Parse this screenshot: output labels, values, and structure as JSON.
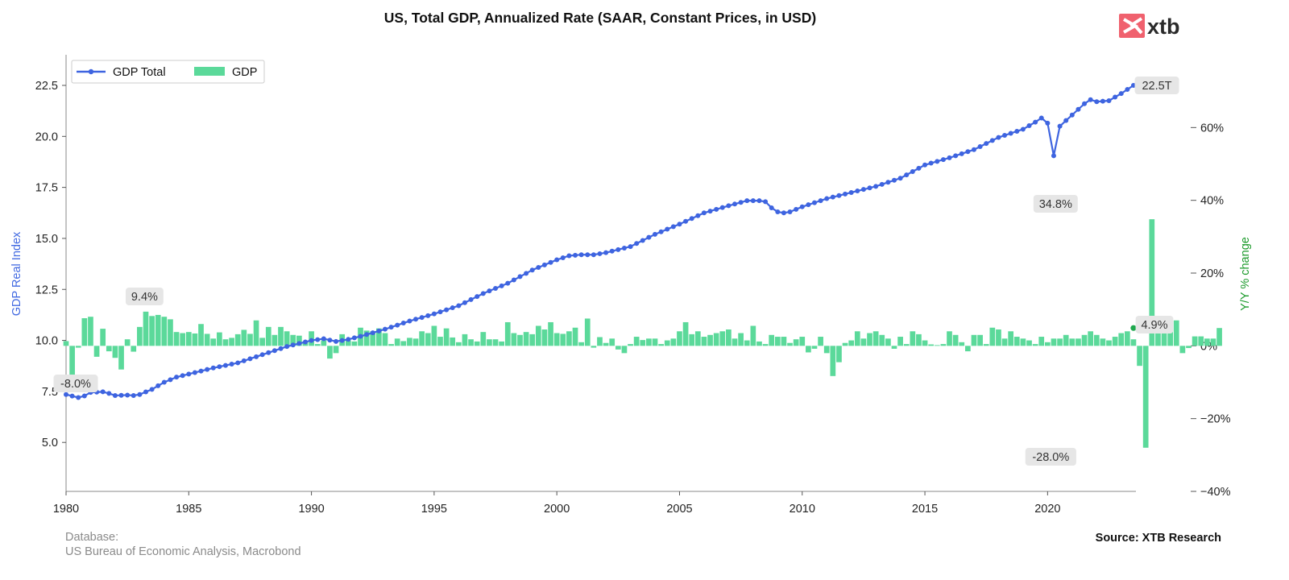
{
  "title": "US, Total GDP, Annualized Rate (SAAR, Constant Prices, in USD)",
  "logo_text": "xtb",
  "footer": {
    "database_label": "Database:",
    "database_value": "US Bureau of Economic Analysis, Macrobond",
    "source": "Source: XTB Research"
  },
  "colors": {
    "line": "#3e64e0",
    "bar": "#5bd99a",
    "left_axis_label": "#4169e1",
    "right_axis_label": "#1a9a2a",
    "logo_bg": "#f0616e",
    "annotation_bg": "#e6e6e6"
  },
  "chart_data": {
    "type": "bar+line",
    "title": "US, Total GDP, Annualized Rate (SAAR, Constant Prices, in USD)",
    "xlim": [
      1980,
      2023.6
    ],
    "x_ticks": [
      1980,
      1985,
      1990,
      1995,
      2000,
      2005,
      2010,
      2015,
      2020
    ],
    "left_axis": {
      "label": "GDP Real Index",
      "ylim": [
        2.6,
        24.0
      ],
      "ticks": [
        5.0,
        7.5,
        10.0,
        12.5,
        15.0,
        17.5,
        20.0,
        22.5
      ]
    },
    "right_axis": {
      "label": "Y/Y % change",
      "ylim": [
        -40,
        80
      ],
      "ticks": [
        -40,
        -20,
        0,
        20,
        40,
        60
      ]
    },
    "grid": false,
    "legend": {
      "position": "top-left",
      "entries": [
        "GDP Total",
        "GDP"
      ]
    },
    "series": [
      {
        "name": "GDP Total",
        "kind": "line",
        "axis": "left",
        "points": [
          [
            1980.0,
            7.35
          ],
          [
            1980.5,
            7.2
          ],
          [
            1980.75,
            7.28
          ],
          [
            1981.0,
            7.45
          ],
          [
            1981.5,
            7.48
          ],
          [
            1981.75,
            7.4
          ],
          [
            1982.0,
            7.3
          ],
          [
            1982.5,
            7.32
          ],
          [
            1982.75,
            7.3
          ],
          [
            1983.0,
            7.35
          ],
          [
            1983.5,
            7.6
          ],
          [
            1984.0,
            7.95
          ],
          [
            1984.5,
            8.2
          ],
          [
            1985.0,
            8.35
          ],
          [
            1986.0,
            8.65
          ],
          [
            1987.0,
            8.9
          ],
          [
            1988.0,
            9.3
          ],
          [
            1989.0,
            9.7
          ],
          [
            1990.0,
            10.0
          ],
          [
            1990.5,
            10.08
          ],
          [
            1991.0,
            9.95
          ],
          [
            1991.5,
            10.05
          ],
          [
            1992.0,
            10.2
          ],
          [
            1993.0,
            10.55
          ],
          [
            1994.0,
            10.95
          ],
          [
            1995.0,
            11.3
          ],
          [
            1996.0,
            11.7
          ],
          [
            1997.0,
            12.3
          ],
          [
            1998.0,
            12.8
          ],
          [
            1999.0,
            13.45
          ],
          [
            2000.0,
            13.95
          ],
          [
            2000.5,
            14.15
          ],
          [
            2001.0,
            14.2
          ],
          [
            2001.5,
            14.2
          ],
          [
            2002.0,
            14.3
          ],
          [
            2003.0,
            14.6
          ],
          [
            2004.0,
            15.2
          ],
          [
            2005.0,
            15.7
          ],
          [
            2006.0,
            16.25
          ],
          [
            2007.0,
            16.6
          ],
          [
            2007.75,
            16.85
          ],
          [
            2008.25,
            16.85
          ],
          [
            2008.5,
            16.8
          ],
          [
            2008.75,
            16.5
          ],
          [
            2009.0,
            16.3
          ],
          [
            2009.25,
            16.25
          ],
          [
            2009.5,
            16.3
          ],
          [
            2010.0,
            16.55
          ],
          [
            2011.0,
            16.95
          ],
          [
            2012.0,
            17.25
          ],
          [
            2013.0,
            17.55
          ],
          [
            2014.0,
            17.95
          ],
          [
            2015.0,
            18.6
          ],
          [
            2016.0,
            18.95
          ],
          [
            2017.0,
            19.35
          ],
          [
            2018.0,
            19.95
          ],
          [
            2019.0,
            20.35
          ],
          [
            2019.5,
            20.7
          ],
          [
            2019.75,
            20.9
          ],
          [
            2020.0,
            20.65
          ],
          [
            2020.25,
            19.05
          ],
          [
            2020.5,
            20.5
          ],
          [
            2021.0,
            21.05
          ],
          [
            2021.5,
            21.6
          ],
          [
            2021.75,
            21.8
          ],
          [
            2022.0,
            21.7
          ],
          [
            2022.5,
            21.75
          ],
          [
            2023.0,
            22.1
          ],
          [
            2023.5,
            22.5
          ]
        ]
      },
      {
        "name": "GDP",
        "kind": "bar",
        "axis": "right",
        "unit": "%",
        "start": 1980.0,
        "step": 0.25,
        "values": [
          1.3,
          -8.0,
          -0.5,
          7.6,
          8.0,
          -3.0,
          4.7,
          -1.5,
          -3.3,
          -6.5,
          1.8,
          -1.6,
          5.2,
          9.4,
          8.2,
          8.5,
          8.0,
          7.3,
          3.8,
          3.5,
          3.8,
          3.4,
          6.0,
          3.3,
          2.0,
          3.7,
          1.8,
          2.2,
          3.2,
          4.4,
          3.3,
          7.0,
          2.2,
          5.2,
          3.0,
          5.2,
          4.0,
          3.0,
          2.8,
          1.0,
          4.0,
          0.5,
          1.5,
          -3.5,
          -2.0,
          3.2,
          1.5,
          1.2,
          5.0,
          4.2,
          4.0,
          4.8,
          3.5,
          0.5,
          2.0,
          1.3,
          2.2,
          2.0,
          4.0,
          3.5,
          5.5,
          2.5,
          4.8,
          2.3,
          1.0,
          3.2,
          1.8,
          1.2,
          3.8,
          1.8,
          1.8,
          1.2,
          6.5,
          3.5,
          3.0,
          3.8,
          3.2,
          5.5,
          4.5,
          6.5,
          3.5,
          3.3,
          4.0,
          5.0,
          1.0,
          7.5,
          -0.5,
          2.4,
          0.8,
          2.0,
          -1.0,
          -2.0,
          0.5,
          2.5,
          1.6,
          2.0,
          2.0,
          0.5,
          1.5,
          2.0,
          4.0,
          6.5,
          3.2,
          4.0,
          2.5,
          3.0,
          3.5,
          4.0,
          4.5,
          2.0,
          3.5,
          1.5,
          5.5,
          1.2,
          0.5,
          3.0,
          2.5,
          2.5,
          0.8,
          1.8,
          2.5,
          -1.8,
          -0.8,
          2.5,
          -2.0,
          -8.3,
          -4.5,
          0.8,
          1.5,
          4.0,
          2.0,
          3.5,
          4.0,
          3.0,
          2.0,
          -0.8,
          2.5,
          0.5,
          4.0,
          3.2,
          1.5,
          0.4,
          0.2,
          0.5,
          4.0,
          3.0,
          1.0,
          -1.5,
          3.0,
          3.0,
          0.5,
          5.0,
          4.5,
          2.0,
          4.0,
          2.5,
          2.0,
          1.5,
          0.5,
          2.5,
          1.0,
          2.0,
          2.0,
          3.0,
          2.0,
          2.0,
          3.0,
          4.0,
          3.0,
          2.0,
          1.5,
          2.5,
          3.5,
          4.0,
          1.8,
          -5.5,
          -28.0,
          34.8,
          4.0,
          5.0,
          5.5,
          7.0,
          -2.0,
          -0.6,
          2.6,
          2.6,
          2.0,
          2.0,
          4.9
        ]
      }
    ],
    "annotations": [
      {
        "text": "-8.0%",
        "x": 1980.0,
        "y": -8.0,
        "axis": "right"
      },
      {
        "text": "9.4%",
        "x": 1983.0,
        "y": 9.4,
        "axis": "right"
      },
      {
        "text": "34.8%",
        "x": 2020.0,
        "y": 34.8,
        "axis": "right"
      },
      {
        "text": "-28.0%",
        "x": 2020.0,
        "y": -28.0,
        "axis": "right"
      },
      {
        "text": "22.5T",
        "x": 2023.5,
        "y": 22.5,
        "axis": "left"
      },
      {
        "text": "4.9%",
        "x": 2023.5,
        "y": 4.9,
        "axis": "right"
      }
    ]
  }
}
